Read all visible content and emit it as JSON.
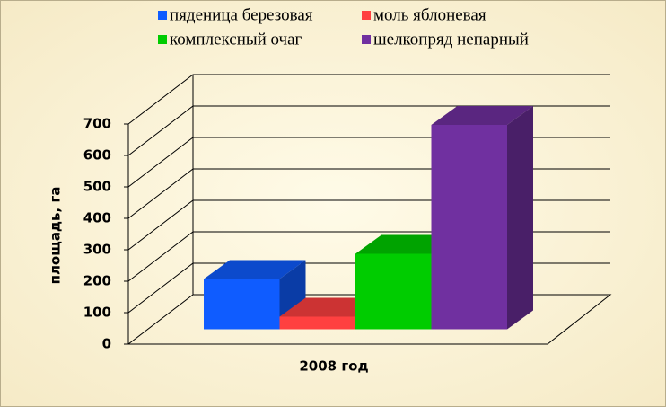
{
  "chart_data": {
    "type": "bar",
    "categories": [
      "2008 год"
    ],
    "y_label": "площадь, га",
    "series": [
      {
        "name": "пяденица березовая",
        "color": "#0f5cff",
        "values": [
          160
        ]
      },
      {
        "name": "моль яблоневая",
        "color": "#ff4040",
        "values": [
          40
        ]
      },
      {
        "name": "комплексный очаг",
        "color": "#00cc00",
        "values": [
          240
        ]
      },
      {
        "name": "шелкопряд непарный",
        "color": "#7030a0",
        "values": [
          650
        ]
      }
    ],
    "ylim": [
      0,
      700
    ],
    "yticks": [
      0,
      100,
      200,
      300,
      400,
      500,
      600,
      700
    ],
    "grid": true
  }
}
